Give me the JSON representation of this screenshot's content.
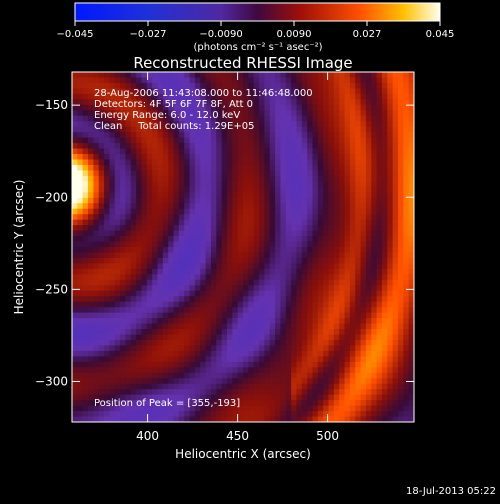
{
  "chart_data": {
    "type": "heatmap",
    "title": "Reconstructed RHESSI Image",
    "xlabel": "Heliocentric X (arcsec)",
    "ylabel": "Heliocentric Y (arcsec)",
    "xlim": [
      358,
      548
    ],
    "ylim": [
      -322,
      -132
    ],
    "x_ticks": [
      400,
      450,
      500
    ],
    "y_ticks": [
      -150,
      -200,
      -250,
      -300
    ],
    "grid": false,
    "colorbar": {
      "min": -0.045,
      "max": 0.045,
      "ticks": [
        -0.045,
        -0.027,
        -0.009,
        0.009,
        0.027,
        0.045
      ],
      "tick_labels": [
        "−0.045",
        "−0.027",
        "−0.0090",
        "0.0090",
        "0.027",
        "0.045"
      ],
      "unit_label": "(photons cm⁻² s⁻¹ asec⁻²)"
    },
    "annotations": [
      "28-Aug-2006 11:43:08.000 to 11:46:48.000",
      "Detectors: 4F 5F 6F 7F 8F, Att 0",
      "Energy Range: 6.0 - 12.0 keV",
      "Clean     Total counts: 1.29E+05"
    ],
    "peak_label": "Position of Peak = [355,-193]",
    "peak": [
      355,
      -193
    ]
  },
  "footer": {
    "timestamp": "18-Jul-2013 05:22"
  }
}
